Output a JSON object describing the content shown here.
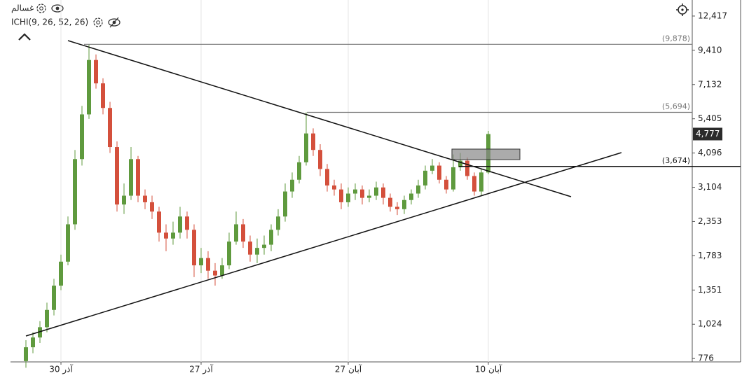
{
  "chart_data": {
    "type": "candlestick",
    "title": "غسالم",
    "indicator": "ICHI(9, 26, 52, 26)",
    "log_scale": true,
    "grid": "vertical",
    "up_color": "#5f9a3e",
    "down_color": "#d4503c",
    "x": [
      null,
      null,
      null,
      null,
      null,
      "آذر 30",
      null,
      null,
      null,
      null,
      null,
      null,
      null,
      null,
      null,
      null,
      null,
      null,
      null,
      null,
      null,
      null,
      null,
      null,
      null,
      "آذر 27",
      null,
      null,
      null,
      null,
      null,
      null,
      null,
      null,
      null,
      null,
      null,
      null,
      null,
      null,
      null,
      null,
      null,
      null,
      null,
      null,
      "آبان 27",
      null,
      null,
      null,
      null,
      null,
      null,
      null,
      null,
      null,
      null,
      null,
      null,
      null,
      null,
      null,
      null,
      null,
      null,
      null,
      "آبان 10"
    ],
    "open": [
      760,
      850,
      920,
      1000,
      1150,
      1400,
      1700,
      2300,
      3900,
      5600,
      8700,
      7200,
      5900,
      4300,
      2700,
      2900,
      3900,
      2900,
      2750,
      2550,
      2150,
      2050,
      2150,
      2450,
      2200,
      1650,
      1750,
      1580,
      1520,
      1650,
      2000,
      2300,
      2000,
      1800,
      1900,
      1950,
      2200,
      2450,
      3000,
      3300,
      3800,
      4800,
      4200,
      3600,
      3150,
      3050,
      2750,
      2950,
      3050,
      2850,
      2900,
      3100,
      2850,
      2650,
      2600,
      2800,
      2950,
      3150,
      3550,
      3700,
      3300,
      3050,
      3650,
      3850,
      3400,
      3000,
      3500
    ],
    "high": [
      900,
      960,
      1050,
      1220,
      1480,
      1800,
      2450,
      4200,
      6000,
      9878,
      9100,
      7500,
      6200,
      4500,
      3200,
      4300,
      4000,
      3050,
      2900,
      2650,
      2300,
      2350,
      2650,
      2550,
      2300,
      1900,
      1850,
      1680,
      1750,
      2150,
      2550,
      2400,
      2100,
      2050,
      2100,
      2300,
      2600,
      3200,
      3500,
      4000,
      5694,
      5000,
      4400,
      3750,
      3300,
      3200,
      3100,
      3200,
      3150,
      3050,
      3250,
      3200,
      2950,
      2750,
      2900,
      3050,
      3300,
      3700,
      3900,
      3800,
      3400,
      4050,
      4100,
      3950,
      3500,
      3600,
      4900
    ],
    "low": [
      720,
      810,
      880,
      960,
      1100,
      1350,
      1650,
      2200,
      3700,
      5400,
      6900,
      5600,
      4100,
      2550,
      2500,
      2800,
      2750,
      2600,
      2400,
      2000,
      1850,
      1950,
      2050,
      2050,
      1500,
      1550,
      1480,
      1400,
      1480,
      1600,
      1950,
      1900,
      1700,
      1680,
      1800,
      1850,
      2100,
      2350,
      2850,
      3200,
      3700,
      4000,
      3400,
      3000,
      2900,
      2600,
      2650,
      2800,
      2700,
      2750,
      2800,
      2700,
      2550,
      2480,
      2500,
      2700,
      2850,
      3050,
      3450,
      3200,
      2950,
      3000,
      3550,
      3300,
      2900,
      2900,
      3450
    ],
    "close": [
      850,
      920,
      1000,
      1150,
      1400,
      1700,
      2300,
      3900,
      5600,
      8700,
      7200,
      5900,
      4300,
      2700,
      2900,
      3900,
      2900,
      2750,
      2550,
      2150,
      2050,
      2150,
      2450,
      2200,
      1650,
      1750,
      1580,
      1520,
      1650,
      2000,
      2300,
      2000,
      1800,
      1900,
      1950,
      2200,
      2450,
      3000,
      3300,
      3800,
      4800,
      4200,
      3600,
      3150,
      3050,
      2750,
      2950,
      3050,
      2850,
      2900,
      3100,
      2850,
      2650,
      2600,
      2800,
      2950,
      3150,
      3550,
      3700,
      3300,
      3050,
      3650,
      3850,
      3400,
      3000,
      3500,
      4777
    ],
    "ylim": [
      755,
      14140
    ],
    "yticks": [
      {
        "value": 12417,
        "label": "12,417"
      },
      {
        "value": 9410,
        "label": "9,410"
      },
      {
        "value": 7132,
        "label": "7,132"
      },
      {
        "value": 5405,
        "label": "5,405"
      },
      {
        "value": 4096,
        "label": "4,096"
      },
      {
        "value": 3104,
        "label": "3,104"
      },
      {
        "value": 2353,
        "label": "2,353"
      },
      {
        "value": 1783,
        "label": "1,783"
      },
      {
        "value": 1351,
        "label": "1,351"
      },
      {
        "value": 1024,
        "label": "1,024"
      },
      {
        "value": 776,
        "label": "776"
      }
    ],
    "levels": [
      {
        "value": 9878,
        "label": "(9,878)"
      },
      {
        "value": 5694,
        "label": "(5,694)"
      },
      {
        "value": 3674,
        "label": "(3,674)"
      }
    ],
    "last_price": {
      "value": 4777,
      "label": "4,777"
    }
  }
}
